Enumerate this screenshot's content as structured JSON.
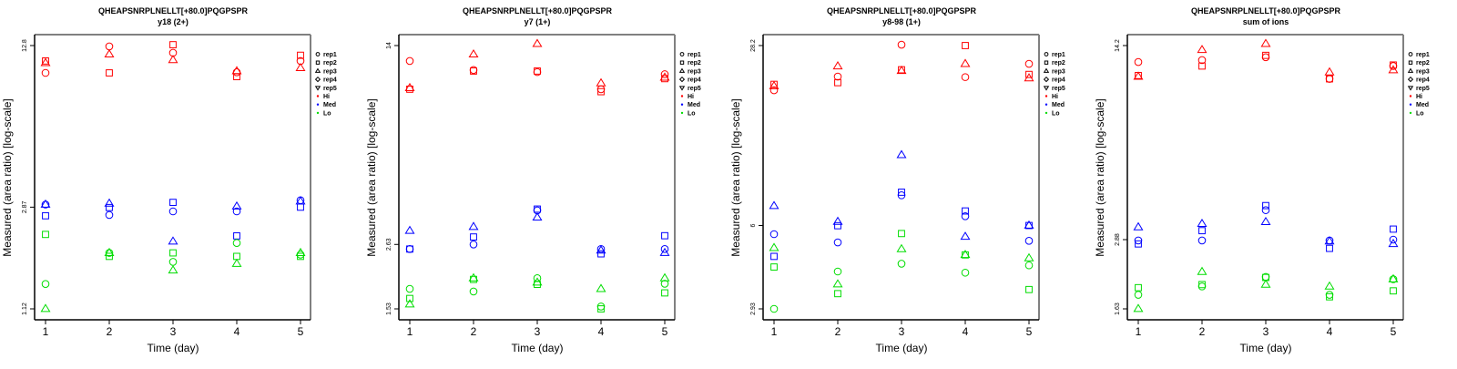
{
  "chart_data": [
    {
      "type": "scatter",
      "title": "QHEAPSNRPLNELLT[+80.0]PQGPSPR",
      "subtitle": "y18 (2+)",
      "xlabel": "Time (day)",
      "ylabel": "Measured (area ratio) [log-scale]",
      "yscale": "log",
      "x": [
        1,
        2,
        3,
        4,
        5
      ],
      "xticks": [
        "1",
        "2",
        "3",
        "4",
        "5"
      ],
      "yticks": [
        12.8,
        2.87,
        1.12
      ],
      "ytick_labels": [
        "12.8",
        "2.87",
        "1.12"
      ],
      "ylim": [
        1.12,
        12.8
      ],
      "grid": false,
      "legend_position": "right",
      "series": [
        {
          "name": "rep1",
          "level": "Hi",
          "marker": "circle",
          "values": [
            9.94,
            12.7,
            11.97,
            10.0,
            11.1
          ]
        },
        {
          "name": "rep2",
          "level": "Hi",
          "marker": "square",
          "values": [
            11.1,
            9.94,
            12.9,
            9.6,
            11.7
          ]
        },
        {
          "name": "rep3",
          "level": "Hi",
          "marker": "triangle",
          "values": [
            10.9,
            11.8,
            11.2,
            10.1,
            10.4
          ]
        },
        {
          "name": "rep1",
          "level": "Med",
          "marker": "circle",
          "values": [
            2.94,
            2.67,
            2.76,
            2.76,
            3.06
          ]
        },
        {
          "name": "rep2",
          "level": "Med",
          "marker": "square",
          "values": [
            2.65,
            2.86,
            3.0,
            2.2,
            2.87
          ]
        },
        {
          "name": "rep3",
          "level": "Med",
          "marker": "triangle",
          "values": [
            2.94,
            2.97,
            2.09,
            2.89,
            3.03
          ]
        },
        {
          "name": "rep1",
          "level": "Lo",
          "marker": "circle",
          "values": [
            1.41,
            1.88,
            1.73,
            2.06,
            1.85
          ]
        },
        {
          "name": "rep2",
          "level": "Lo",
          "marker": "square",
          "values": [
            2.23,
            1.82,
            1.88,
            1.82,
            1.82
          ]
        },
        {
          "name": "rep3",
          "level": "Lo",
          "marker": "triangle",
          "values": [
            1.12,
            1.88,
            1.6,
            1.7,
            1.88
          ]
        }
      ]
    },
    {
      "type": "scatter",
      "title": "QHEAPSNRPLNELLT[+80.0]PQGPSPR",
      "subtitle": "y7 (1+)",
      "xlabel": "Time (day)",
      "ylabel": "Measured (area ratio) [log-scale]",
      "yscale": "log",
      "x": [
        1,
        2,
        3,
        4,
        5
      ],
      "xticks": [
        "1",
        "2",
        "3",
        "4",
        "5"
      ],
      "yticks": [
        14,
        2.63,
        1.53
      ],
      "ytick_labels": [
        "14",
        "2.63",
        "1.53"
      ],
      "ylim": [
        1.53,
        14
      ],
      "grid": false,
      "legend_position": "right",
      "series": [
        {
          "name": "rep1",
          "level": "Hi",
          "marker": "circle",
          "values": [
            12.3,
            11.4,
            11.2,
            9.7,
            11.0
          ]
        },
        {
          "name": "rep2",
          "level": "Hi",
          "marker": "square",
          "values": [
            9.7,
            11.3,
            11.3,
            9.5,
            10.6
          ]
        },
        {
          "name": "rep3",
          "level": "Hi",
          "marker": "triangle",
          "values": [
            9.8,
            13.0,
            14.2,
            10.2,
            10.7
          ]
        },
        {
          "name": "rep1",
          "level": "Med",
          "marker": "circle",
          "values": [
            2.53,
            2.63,
            3.5,
            2.53,
            2.53
          ]
        },
        {
          "name": "rep2",
          "level": "Med",
          "marker": "square",
          "values": [
            2.53,
            2.8,
            3.54,
            2.43,
            2.83
          ]
        },
        {
          "name": "rep3",
          "level": "Med",
          "marker": "triangle",
          "values": [
            2.95,
            3.05,
            3.3,
            2.5,
            2.45
          ]
        },
        {
          "name": "rep1",
          "level": "Lo",
          "marker": "circle",
          "values": [
            1.81,
            1.77,
            1.98,
            1.56,
            1.89
          ]
        },
        {
          "name": "rep2",
          "level": "Lo",
          "marker": "square",
          "values": [
            1.67,
            1.96,
            1.88,
            1.53,
            1.75
          ]
        },
        {
          "name": "rep3",
          "level": "Lo",
          "marker": "triangle",
          "values": [
            1.59,
            1.98,
            1.91,
            1.81,
            1.98
          ]
        }
      ]
    },
    {
      "type": "scatter",
      "title": "QHEAPSNRPLNELLT[+80.0]PQGPSPR",
      "subtitle": "y8-98 (1+)",
      "xlabel": "Time (day)",
      "ylabel": "Measured (area ratio) [log-scale]",
      "yscale": "log",
      "x": [
        1,
        2,
        3,
        4,
        5
      ],
      "xticks": [
        "1",
        "2",
        "3",
        "4",
        "5"
      ],
      "yticks": [
        28.2,
        6,
        2.93
      ],
      "ytick_labels": [
        "28.2",
        "6",
        "2.93"
      ],
      "ylim": [
        2.93,
        28.2
      ],
      "grid": false,
      "legend_position": "right",
      "series": [
        {
          "name": "rep1",
          "level": "Hi",
          "marker": "circle",
          "values": [
            19.2,
            21.6,
            28.4,
            21.5,
            24.1
          ]
        },
        {
          "name": "rep2",
          "level": "Hi",
          "marker": "square",
          "values": [
            20.2,
            20.5,
            22.9,
            28.2,
            22.0
          ]
        },
        {
          "name": "rep3",
          "level": "Hi",
          "marker": "triangle",
          "values": [
            19.9,
            23.6,
            22.7,
            24.1,
            21.3
          ]
        },
        {
          "name": "rep1",
          "level": "Med",
          "marker": "circle",
          "values": [
            5.57,
            5.19,
            7.78,
            6.5,
            5.26
          ]
        },
        {
          "name": "rep2",
          "level": "Med",
          "marker": "square",
          "values": [
            4.6,
            5.99,
            7.99,
            6.8,
            6.0
          ]
        },
        {
          "name": "rep3",
          "level": "Med",
          "marker": "triangle",
          "values": [
            7.1,
            6.2,
            11.0,
            5.45,
            6.0
          ]
        },
        {
          "name": "rep1",
          "level": "Lo",
          "marker": "circle",
          "values": [
            2.93,
            4.04,
            4.32,
            4.0,
            4.26
          ]
        },
        {
          "name": "rep2",
          "level": "Lo",
          "marker": "square",
          "values": [
            4.2,
            3.34,
            5.6,
            4.66,
            3.46
          ]
        },
        {
          "name": "rep3",
          "level": "Lo",
          "marker": "triangle",
          "values": [
            4.95,
            3.62,
            4.9,
            4.66,
            4.53
          ]
        }
      ]
    },
    {
      "type": "scatter",
      "title": "QHEAPSNRPLNELLT[+80.0]PQGPSPR",
      "subtitle": "sum of ions",
      "xlabel": "Time (day)",
      "ylabel": "Measured (area ratio) [log-scale]",
      "yscale": "log",
      "x": [
        1,
        2,
        3,
        4,
        5
      ],
      "xticks": [
        "1",
        "2",
        "3",
        "4",
        "5"
      ],
      "yticks": [
        14.2,
        2.88,
        1.63
      ],
      "ytick_labels": [
        "14.2",
        "2.88",
        "1.63"
      ],
      "ylim": [
        1.63,
        14.2
      ],
      "grid": false,
      "legend_position": "right",
      "series": [
        {
          "name": "rep1",
          "level": "Hi",
          "marker": "circle",
          "values": [
            12.4,
            12.6,
            12.9,
            10.8,
            12.0
          ]
        },
        {
          "name": "rep2",
          "level": "Hi",
          "marker": "square",
          "values": [
            11.1,
            12.0,
            13.1,
            10.8,
            12.1
          ]
        },
        {
          "name": "rep3",
          "level": "Hi",
          "marker": "triangle",
          "values": [
            11.0,
            13.7,
            14.4,
            11.4,
            11.6
          ]
        },
        {
          "name": "rep1",
          "level": "Med",
          "marker": "circle",
          "values": [
            2.86,
            2.86,
            3.67,
            2.86,
            2.88
          ]
        },
        {
          "name": "rep2",
          "level": "Med",
          "marker": "square",
          "values": [
            2.78,
            3.1,
            3.81,
            2.68,
            3.14
          ]
        },
        {
          "name": "rep3",
          "level": "Med",
          "marker": "triangle",
          "values": [
            3.19,
            3.28,
            3.33,
            2.84,
            2.78
          ]
        },
        {
          "name": "rep1",
          "level": "Lo",
          "marker": "circle",
          "values": [
            1.83,
            1.96,
            2.12,
            1.83,
            2.08
          ]
        },
        {
          "name": "rep2",
          "level": "Lo",
          "marker": "square",
          "values": [
            1.94,
            1.99,
            2.11,
            1.8,
            1.89
          ]
        },
        {
          "name": "rep3",
          "level": "Lo",
          "marker": "triangle",
          "values": [
            1.63,
            2.21,
            1.99,
            1.96,
            2.08
          ]
        }
      ]
    }
  ],
  "legend": {
    "items": [
      {
        "label": "rep1",
        "symbol": "circle"
      },
      {
        "label": "rep2",
        "symbol": "square"
      },
      {
        "label": "rep3",
        "symbol": "triangle"
      },
      {
        "label": "rep4",
        "symbol": "diamond"
      },
      {
        "label": "rep5",
        "symbol": "triangle-down"
      },
      {
        "label": "Hi",
        "symbol": "dot",
        "level": "Hi"
      },
      {
        "label": "Med",
        "symbol": "dot",
        "level": "Med"
      },
      {
        "label": "Lo",
        "symbol": "dot",
        "level": "Lo"
      }
    ]
  },
  "colors": {
    "Hi": "#ff0000",
    "Med": "#0000ff",
    "Lo": "#00dd00",
    "axis": "#000000",
    "frame": "#808080",
    "legend_symbol": "#000000"
  }
}
